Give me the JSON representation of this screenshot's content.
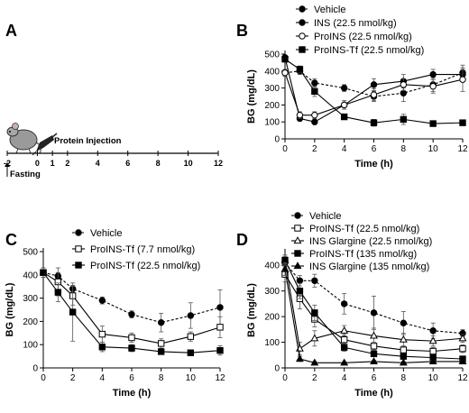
{
  "panels": [
    {
      "id": "A",
      "label": "A"
    },
    {
      "id": "B",
      "label": "B"
    },
    {
      "id": "C",
      "label": "C"
    },
    {
      "id": "D",
      "label": "D"
    }
  ],
  "timeline": {
    "injection_label": "Protein Injection",
    "fasting_label": "Fasting",
    "ticks": [
      "-2",
      "0",
      "1",
      "2",
      "4",
      "6",
      "8",
      "10",
      "12"
    ]
  },
  "chart_data": [
    {
      "panel": "B",
      "type": "line",
      "xlabel": "Time (h)",
      "ylabel": "BG (mg/dL)",
      "xlim": [
        0,
        12
      ],
      "ylim": [
        0,
        500
      ],
      "xticks": [
        0,
        2,
        4,
        6,
        8,
        10,
        12
      ],
      "yticks": [
        0,
        100,
        200,
        300,
        400,
        500
      ],
      "legend_position": "top-right",
      "series": [
        {
          "name": "Vehicle",
          "marker": "circle-filled",
          "dash": "dashed",
          "x": [
            0,
            1,
            2,
            4,
            6,
            8,
            10,
            12
          ],
          "y": [
            390,
            400,
            330,
            300,
            250,
            270,
            320,
            390
          ],
          "err": [
            20,
            20,
            25,
            20,
            30,
            50,
            40,
            45
          ]
        },
        {
          "name": "INS (22.5 nmol/kg)",
          "marker": "circle-filled",
          "dash": "solid",
          "x": [
            0,
            1,
            2,
            4,
            6,
            8,
            10,
            12
          ],
          "y": [
            480,
            120,
            100,
            200,
            320,
            340,
            380,
            380
          ],
          "err": [
            10,
            15,
            10,
            25,
            35,
            40,
            30,
            30
          ]
        },
        {
          "name": "ProINS (22.5 nmol/kg)",
          "marker": "circle-open",
          "dash": "solid",
          "x": [
            0,
            1,
            2,
            4,
            6,
            8,
            10,
            12
          ],
          "y": [
            390,
            140,
            140,
            200,
            260,
            320,
            310,
            350
          ],
          "err": [
            20,
            20,
            20,
            25,
            35,
            35,
            40,
            70
          ]
        },
        {
          "name": "ProINS-Tf (22.5 nmol/kg)",
          "marker": "square-filled",
          "dash": "solid",
          "x": [
            0,
            1,
            2,
            4,
            6,
            8,
            10,
            12
          ],
          "y": [
            470,
            410,
            280,
            130,
            95,
            115,
            90,
            95
          ],
          "err": [
            15,
            20,
            30,
            15,
            20,
            30,
            10,
            15
          ]
        }
      ]
    },
    {
      "panel": "C",
      "type": "line",
      "xlabel": "Time (h)",
      "ylabel": "BG (mg/dL)",
      "xlim": [
        0,
        12
      ],
      "ylim": [
        0,
        500
      ],
      "xticks": [
        0,
        2,
        4,
        6,
        8,
        10,
        12
      ],
      "yticks": [
        0,
        100,
        200,
        300,
        400,
        500
      ],
      "legend_position": "top-center",
      "series": [
        {
          "name": "Vehicle",
          "marker": "circle-filled",
          "dash": "dashed",
          "x": [
            0,
            1,
            2,
            4,
            6,
            8,
            10,
            12
          ],
          "y": [
            410,
            395,
            340,
            290,
            230,
            195,
            225,
            260
          ],
          "err": [
            20,
            15,
            15,
            15,
            15,
            40,
            55,
            75
          ]
        },
        {
          "name": "ProINS-Tf (7.7 nmol/kg)",
          "marker": "square-open",
          "dash": "solid",
          "x": [
            0,
            1,
            2,
            4,
            6,
            8,
            10,
            12
          ],
          "y": [
            410,
            370,
            310,
            145,
            130,
            105,
            135,
            175
          ],
          "err": [
            20,
            60,
            40,
            35,
            20,
            20,
            20,
            45
          ]
        },
        {
          "name": "ProINS-Tf (22.5 nmol/kg)",
          "marker": "square-filled",
          "dash": "solid",
          "x": [
            0,
            1,
            2,
            4,
            6,
            8,
            10,
            12
          ],
          "y": [
            410,
            325,
            240,
            90,
            85,
            70,
            65,
            75
          ],
          "err": [
            20,
            40,
            125,
            20,
            15,
            10,
            10,
            20
          ]
        }
      ]
    },
    {
      "panel": "D",
      "type": "line",
      "xlabel": "Time (h)",
      "ylabel": "BG (mg/dL)",
      "xlim": [
        0,
        12
      ],
      "ylim": [
        0,
        450
      ],
      "xticks": [
        0,
        2,
        4,
        6,
        8,
        10,
        12
      ],
      "yticks": [
        0,
        100,
        200,
        300,
        400
      ],
      "legend_position": "top-right",
      "series": [
        {
          "name": "Vehicle",
          "marker": "circle-filled",
          "dash": "dashed",
          "x": [
            0,
            1,
            2,
            4,
            6,
            8,
            10,
            12
          ],
          "y": [
            410,
            340,
            340,
            250,
            215,
            175,
            145,
            135
          ],
          "err": [
            20,
            20,
            25,
            40,
            65,
            45,
            30,
            15
          ]
        },
        {
          "name": "ProINS-Tf (22.5 nmol/kg)",
          "marker": "square-open",
          "dash": "solid",
          "x": [
            0,
            1,
            2,
            4,
            6,
            8,
            10,
            12
          ],
          "y": [
            365,
            270,
            190,
            110,
            85,
            70,
            65,
            75
          ],
          "err": [
            30,
            40,
            30,
            20,
            15,
            15,
            15,
            15
          ]
        },
        {
          "name": "INS Glargine (22.5 nmol/kg)",
          "marker": "triangle-open",
          "dash": "solid",
          "x": [
            0,
            1,
            2,
            4,
            6,
            8,
            10,
            12
          ],
          "y": [
            420,
            75,
            115,
            145,
            125,
            110,
            105,
            115
          ],
          "err": [
            20,
            25,
            30,
            20,
            30,
            25,
            20,
            15
          ]
        },
        {
          "name": "ProINS-Tf (135 nmol/kg)",
          "marker": "square-filled",
          "dash": "solid",
          "x": [
            0,
            1,
            2,
            4,
            6,
            8,
            10,
            12
          ],
          "y": [
            420,
            300,
            215,
            80,
            55,
            45,
            40,
            35
          ],
          "err": [
            15,
            30,
            30,
            15,
            10,
            10,
            10,
            10
          ]
        },
        {
          "name": "INS Glargine (135 nmol/kg)",
          "marker": "triangle-filled",
          "dash": "solid",
          "x": [
            0,
            1,
            2,
            4,
            6,
            8,
            10,
            12
          ],
          "y": [
            385,
            35,
            20,
            20,
            25,
            20,
            25,
            25
          ],
          "err": [
            25,
            10,
            5,
            5,
            5,
            5,
            5,
            5
          ]
        }
      ]
    }
  ]
}
